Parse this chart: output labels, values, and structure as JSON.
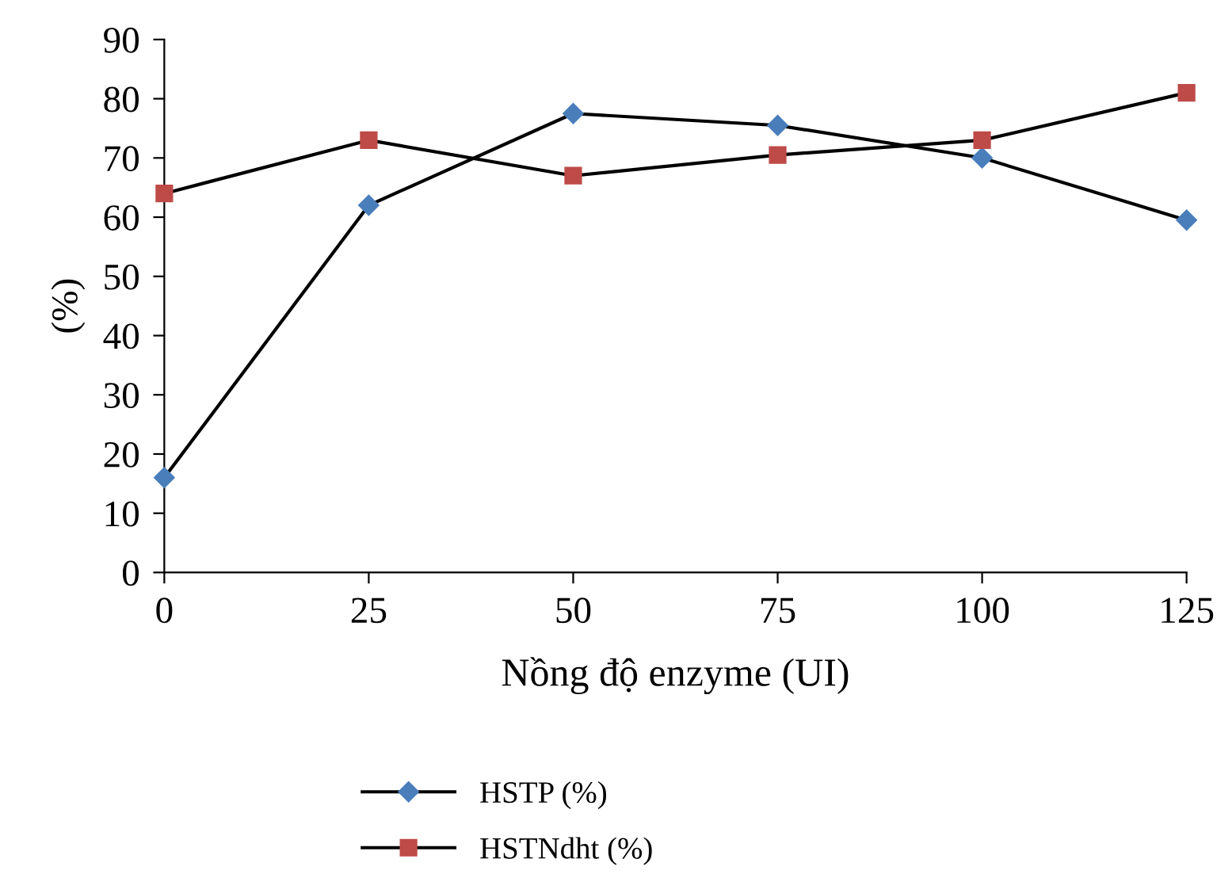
{
  "chart_data": {
    "type": "line",
    "xlabel": "Nồng độ enzyme (UI)",
    "ylabel": "(%)",
    "x": [
      0,
      25,
      50,
      75,
      100,
      125
    ],
    "series": [
      {
        "name": "HSTP (%)",
        "color": "#4a7ebb",
        "marker": "diamond",
        "values": [
          16,
          62,
          77.5,
          75.5,
          70,
          59.5
        ]
      },
      {
        "name": "HSTNdht (%)",
        "color": "#be4b48",
        "marker": "square",
        "values": [
          64,
          73,
          67,
          70.5,
          73,
          81
        ]
      }
    ],
    "xlim": [
      0,
      125
    ],
    "xticks": [
      0,
      25,
      50,
      75,
      100,
      125
    ],
    "ylim": [
      0,
      90
    ],
    "yticks": [
      0,
      10,
      20,
      30,
      40,
      50,
      60,
      70,
      80,
      90
    ],
    "grid": false,
    "legend": "bottom",
    "line_style": "solid"
  }
}
